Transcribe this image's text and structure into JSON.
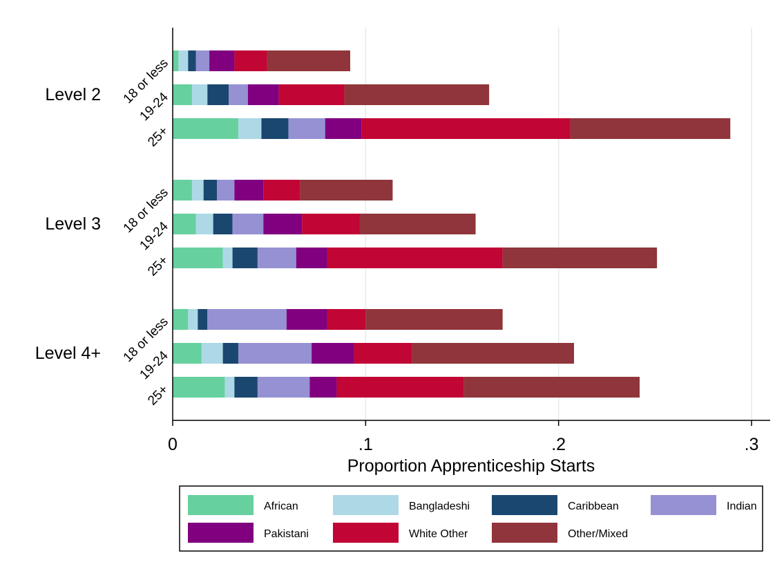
{
  "chart_data": {
    "type": "bar",
    "orientation": "horizontal",
    "stacked": true,
    "title": "",
    "xlabel": "Proportion Apprenticeship Starts",
    "ylabel": "",
    "xlim": [
      0,
      0.3
    ],
    "xticks": [
      0,
      0.1,
      0.2,
      0.3
    ],
    "xtick_labels": [
      "0",
      ".1",
      ".2",
      ".3"
    ],
    "grid": true,
    "legend_position": "bottom",
    "groups": [
      {
        "label": "Level 2",
        "rows": [
          {
            "label": "18 or less",
            "values": [
              0.003,
              0.005,
              0.004,
              0.007,
              0.013,
              0.017,
              0.043
            ]
          },
          {
            "label": "19-24",
            "values": [
              0.01,
              0.008,
              0.011,
              0.01,
              0.016,
              0.034,
              0.075
            ]
          },
          {
            "label": "25+",
            "values": [
              0.034,
              0.012,
              0.014,
              0.019,
              0.019,
              0.108,
              0.083
            ]
          }
        ]
      },
      {
        "label": "Level 3",
        "rows": [
          {
            "label": "18 or less",
            "values": [
              0.01,
              0.006,
              0.007,
              0.009,
              0.015,
              0.019,
              0.048
            ]
          },
          {
            "label": "19-24",
            "values": [
              0.012,
              0.009,
              0.01,
              0.016,
              0.02,
              0.03,
              0.06
            ]
          },
          {
            "label": "25+",
            "values": [
              0.026,
              0.005,
              0.013,
              0.02,
              0.016,
              0.091,
              0.08
            ]
          }
        ]
      },
      {
        "label": "Level 4+",
        "rows": [
          {
            "label": "18 or less",
            "values": [
              0.008,
              0.005,
              0.005,
              0.041,
              0.021,
              0.02,
              0.071
            ]
          },
          {
            "label": "19-24",
            "values": [
              0.015,
              0.011,
              0.008,
              0.038,
              0.022,
              0.03,
              0.084
            ]
          },
          {
            "label": "25+",
            "values": [
              0.027,
              0.005,
              0.012,
              0.027,
              0.014,
              0.066,
              0.091
            ]
          }
        ]
      }
    ],
    "series": [
      {
        "name": "African",
        "color": "#66d19e"
      },
      {
        "name": "Bangladeshi",
        "color": "#add8e6"
      },
      {
        "name": "Caribbean",
        "color": "#1a476f"
      },
      {
        "name": "Indian",
        "color": "#9591d3"
      },
      {
        "name": "Pakistani",
        "color": "#800080"
      },
      {
        "name": "White Other",
        "color": "#c10534"
      },
      {
        "name": "Other/Mixed",
        "color": "#90353b"
      }
    ]
  }
}
